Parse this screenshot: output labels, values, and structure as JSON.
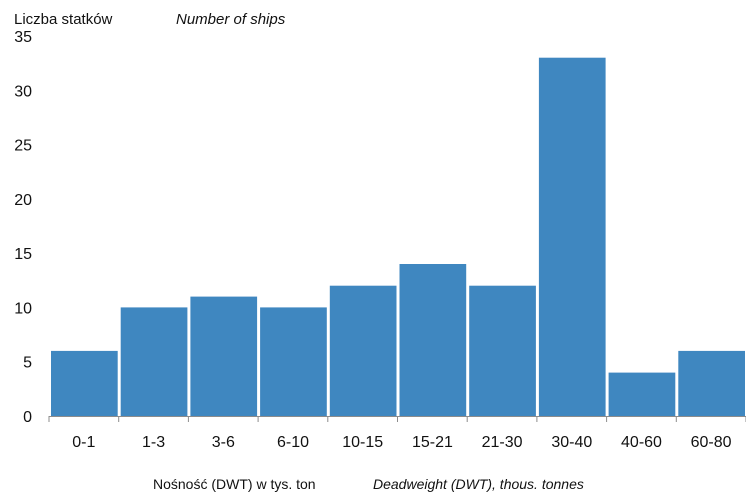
{
  "chart_data": {
    "type": "bar",
    "ylabel_pl": "Liczba statków",
    "ylabel_en": "Number of ships",
    "xlabel_pl": "Nośność (DWT) w tys. ton",
    "xlabel_en": "Deadweight (DWT), thous. tonnes",
    "categories": [
      "0-1",
      "1-3",
      "3-6",
      "6-10",
      "10-15",
      "15-21",
      "21-30",
      "30-40",
      "40-60",
      "60-80"
    ],
    "values": [
      6,
      10,
      11,
      10,
      12,
      14,
      12,
      33,
      4,
      6
    ],
    "ylim": [
      0,
      35
    ],
    "yticks": [
      "0",
      "5",
      "10",
      "15",
      "20",
      "25",
      "30",
      "35"
    ],
    "bar_color": "#3f87c0",
    "grid": false,
    "legend": "none"
  }
}
